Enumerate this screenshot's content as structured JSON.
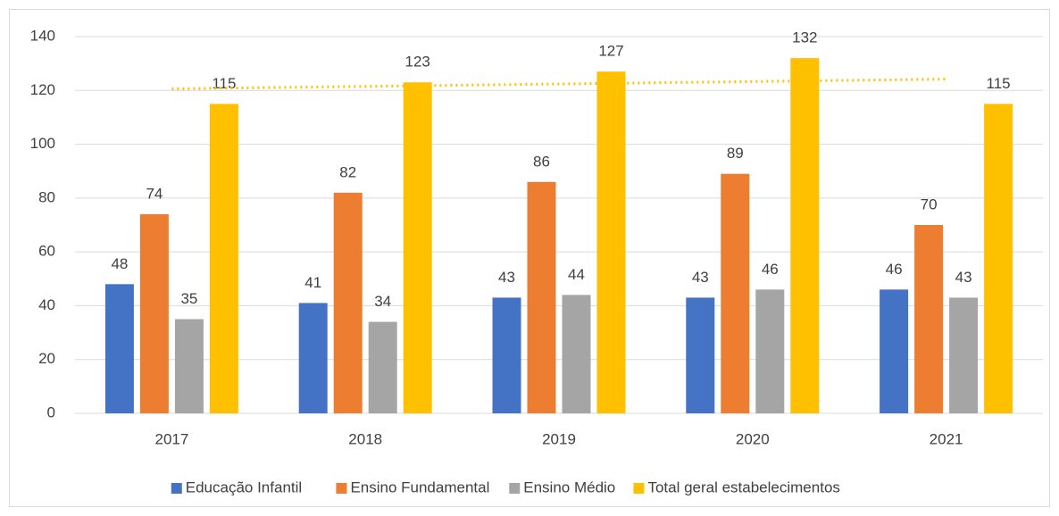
{
  "chart_data": {
    "type": "bar",
    "categories": [
      "2017",
      "2018",
      "2019",
      "2020",
      "2021"
    ],
    "series": [
      {
        "name": "Educação Infantil",
        "color": "#4472c4",
        "values": [
          48,
          41,
          43,
          43,
          46
        ]
      },
      {
        "name": "Ensino Fundamental",
        "color": "#ed7d31",
        "values": [
          74,
          82,
          86,
          89,
          70
        ]
      },
      {
        "name": "Ensino Médio",
        "color": "#a5a5a5",
        "values": [
          35,
          34,
          44,
          46,
          43
        ]
      },
      {
        "name": "Total geral estabelecimentos",
        "color": "#ffc000",
        "values": [
          115,
          123,
          127,
          132,
          115
        ],
        "trendline": "linear"
      }
    ],
    "ylim": [
      0,
      140
    ],
    "yticks": [
      0,
      20,
      40,
      60,
      80,
      100,
      120,
      140
    ],
    "grid": true,
    "legend": "bottom"
  }
}
